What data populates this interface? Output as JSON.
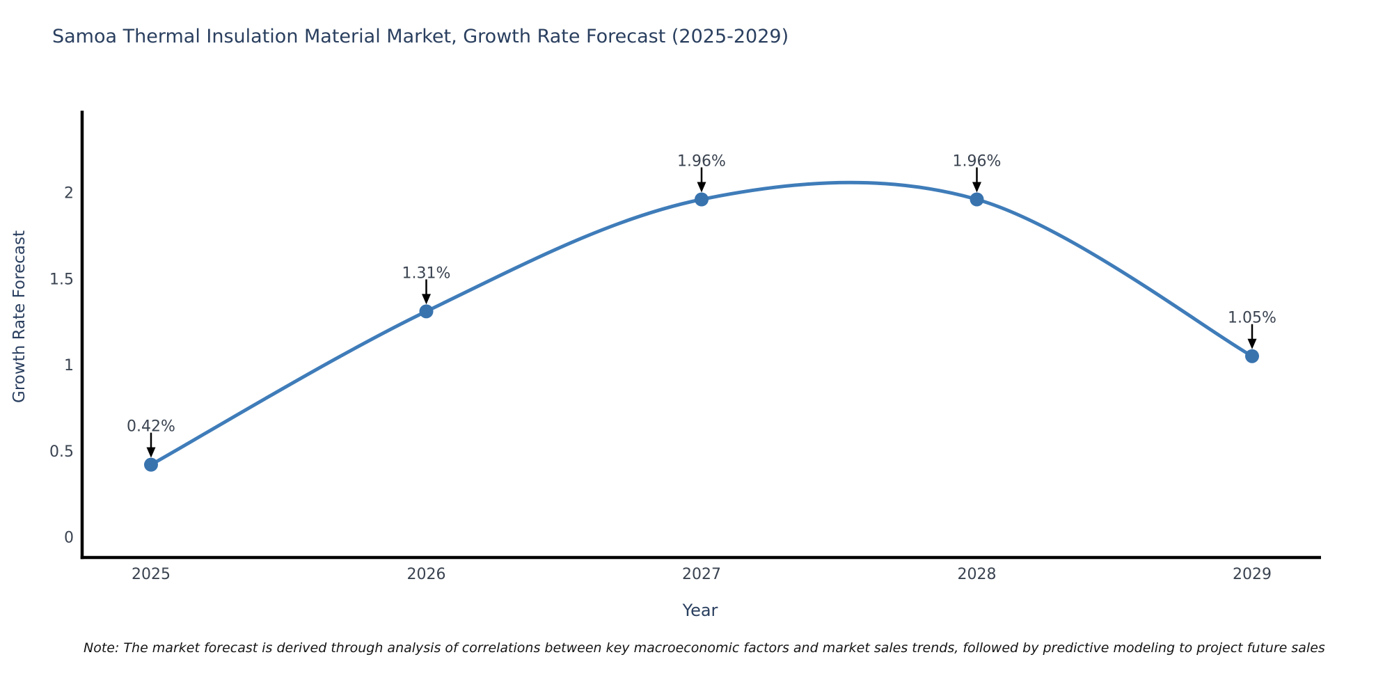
{
  "page": {
    "background": "#ffffff"
  },
  "chart_data": {
    "type": "line",
    "title": "Samoa Thermal Insulation Material Market, Growth Rate Forecast (2025-2029)",
    "xlabel": "Year",
    "ylabel": "Growth Rate Forecast",
    "line_shape": "spline",
    "grid": false,
    "legend": "none",
    "x": [
      2025,
      2026,
      2027,
      2028,
      2029
    ],
    "y": [
      0.42,
      1.31,
      1.96,
      1.96,
      1.05
    ],
    "point_labels": [
      "0.42%",
      "1.31%",
      "1.96%",
      "1.96%",
      "1.05%"
    ],
    "x_tick_labels": [
      "2025",
      "2026",
      "2027",
      "2028",
      "2029"
    ],
    "y_ticks": [
      0,
      0.5,
      1,
      1.5,
      2
    ],
    "y_tick_labels": [
      "0",
      "0.5",
      "1",
      "1.5",
      "2"
    ],
    "ylim": [
      -0.13,
      2.48
    ],
    "colors": {
      "line": "#3f7cb9",
      "marker": "#3873ae",
      "arrow": "#000000",
      "axis_line": "#000000",
      "tick_text": "#3a4350",
      "annotation_text": "#3a4350",
      "title_text": "#2a3f5f"
    }
  },
  "note": {
    "text": "Note: The market forecast is derived through analysis of correlations between key macroeconomic factors and market sales trends, followed by predictive modeling to project future sales"
  }
}
